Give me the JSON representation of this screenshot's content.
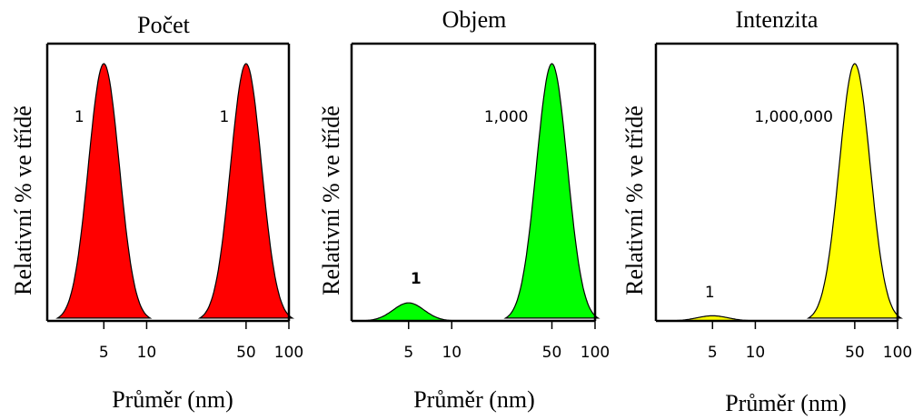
{
  "chart_data": [
    {
      "type": "area",
      "title": "Počet",
      "xlabel": "Průměr (nm)",
      "ylabel": "Relativní % ve třídě",
      "x_scale": "log",
      "xlim": [
        2,
        100
      ],
      "x_ticks": [
        "5",
        "10",
        "50",
        "100"
      ],
      "ylim": [
        0,
        1
      ],
      "color": "#ff0000",
      "series": [
        {
          "center": 5,
          "relative_height": 1.0,
          "label": "1"
        },
        {
          "center": 50,
          "relative_height": 1.0,
          "label": "1"
        }
      ]
    },
    {
      "type": "area",
      "title": "Objem",
      "xlabel": "Průměr (nm)",
      "ylabel": "Relativní % ve třídě",
      "x_scale": "log",
      "xlim": [
        2,
        100
      ],
      "x_ticks": [
        "5",
        "10",
        "50",
        "100"
      ],
      "ylim": [
        0,
        1
      ],
      "color": "#00ff00",
      "series": [
        {
          "center": 5,
          "relative_height": 0.07,
          "label": "1"
        },
        {
          "center": 50,
          "relative_height": 1.0,
          "label": "1,000"
        }
      ]
    },
    {
      "type": "area",
      "title": "Intenzita",
      "xlabel": "Průměr (nm)",
      "ylabel": "Relativní % ve třídě",
      "x_scale": "log",
      "xlim": [
        2,
        100
      ],
      "x_ticks": [
        "5",
        "10",
        "50",
        "100"
      ],
      "ylim": [
        0,
        1
      ],
      "color": "#ffff00",
      "series": [
        {
          "center": 5,
          "relative_height": 0.02,
          "label": "1"
        },
        {
          "center": 50,
          "relative_height": 1.0,
          "label": "1,000,000"
        }
      ]
    }
  ]
}
